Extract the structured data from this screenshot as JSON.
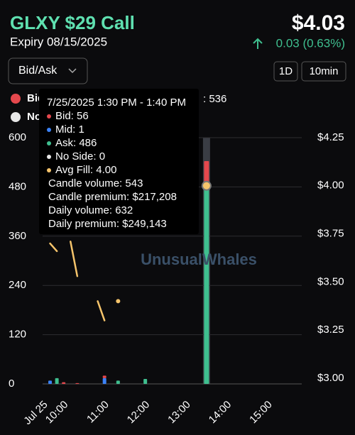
{
  "header": {
    "title": "GLXY $29 Call",
    "expiry": "Expiry 08/15/2025",
    "price": "$4.03",
    "change": "0.03 (0.63%)"
  },
  "controls": {
    "mode": "Bid/Ask",
    "range": "1D",
    "interval": "10min"
  },
  "watermark": "UnusualWhales",
  "tooltip": {
    "title": "7/25/2025 1:30 PM - 1:40 PM",
    "items": [
      {
        "text": "Bid: 56",
        "color": "#e5484d"
      },
      {
        "text": "Mid: 1",
        "color": "#3b82f6"
      },
      {
        "text": "Ask: 486",
        "color": "#3fbf8f"
      },
      {
        "text": "No Side: 0",
        "color": "#e8e8e8"
      },
      {
        "text": "Avg Fill: 4.00",
        "color": "#f5c46b"
      }
    ],
    "lines": [
      "Candle volume: 543",
      "Candle premium: $217,208",
      "Daily volume: 632",
      "Daily premium: $249,143"
    ]
  },
  "chart_data": {
    "type": "bar",
    "stacked": true,
    "legend_note": ": 536",
    "x": [
      580,
      590,
      600,
      620,
      660,
      680,
      720,
      810
    ],
    "series": [
      {
        "name": "Bid",
        "color": "#e5484d",
        "values": [
          null,
          null,
          4,
          2,
          6,
          null,
          null,
          56
        ]
      },
      {
        "name": "Mid",
        "color": "#3b82f6",
        "values": [
          8,
          null,
          null,
          null,
          14,
          null,
          null,
          1
        ]
      },
      {
        "name": "Ask",
        "color": "#3fbf8f",
        "values": [
          null,
          14,
          null,
          null,
          null,
          8,
          12,
          486
        ]
      },
      {
        "name": "No Side",
        "color": "#e8e8e8",
        "values": [
          null,
          null,
          null,
          null,
          null,
          null,
          null,
          0
        ]
      },
      {
        "name": "Avg Fill",
        "type": "line",
        "axis": "y2",
        "color": "#f5c46b",
        "x": [
          580,
          590,
          600,
          610,
          620,
          630,
          640,
          650,
          660,
          670,
          680,
          690,
          810
        ],
        "values": [
          3.7,
          3.66,
          null,
          3.71,
          3.53,
          null,
          null,
          3.4,
          3.3,
          null,
          3.4,
          null,
          4.0
        ]
      }
    ],
    "selected_index": 7,
    "xlim": [
      569,
      950
    ],
    "xticks": [
      {
        "value": 570,
        "label": "Jul 25"
      },
      {
        "value": 600,
        "label": "10:00"
      },
      {
        "value": 660,
        "label": "11:00"
      },
      {
        "value": 720,
        "label": "12:00"
      },
      {
        "value": 780,
        "label": "13:00"
      },
      {
        "value": 840,
        "label": "14:00"
      },
      {
        "value": 900,
        "label": "15:00"
      }
    ],
    "ylim": [
      0,
      600
    ],
    "yticks": [
      0,
      120,
      240,
      360,
      480,
      600
    ],
    "y2lim": [
      2.97,
      4.25
    ],
    "y2ticks": [
      {
        "value": 3.0,
        "label": "$3.00"
      },
      {
        "value": 3.25,
        "label": "$3.25"
      },
      {
        "value": 3.5,
        "label": "$3.50"
      },
      {
        "value": 3.75,
        "label": "$3.75"
      },
      {
        "value": 4.0,
        "label": "$4.00"
      },
      {
        "value": 4.25,
        "label": "$4.25"
      }
    ],
    "grid": true
  }
}
